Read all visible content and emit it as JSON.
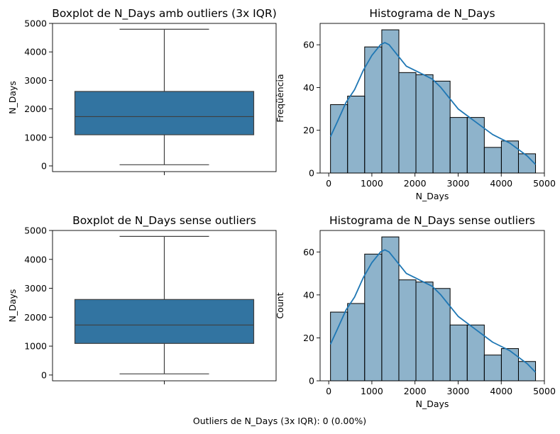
{
  "footer": "Outliers de N_Days (3x IQR): 0 (0.00%)",
  "chart_data": [
    {
      "type": "box",
      "title": "Boxplot de N_Days amb outliers (3x IQR)",
      "xlabel": "",
      "ylabel": "N_Days",
      "ylim": [
        -200,
        5000
      ],
      "yticks": [
        0,
        1000,
        2000,
        3000,
        4000,
        5000
      ],
      "whisker_low": 41,
      "q1": 1093,
      "median": 1730,
      "q3": 2613,
      "whisker_high": 4795,
      "color": "#3274a1",
      "grid": false
    },
    {
      "type": "bar",
      "title": "Histograma de N_Days",
      "xlabel": "N_Days",
      "ylabel": "Freqüència",
      "xlim": [
        -200,
        5000
      ],
      "ylim": [
        0,
        70
      ],
      "xticks": [
        0,
        1000,
        2000,
        3000,
        4000,
        5000
      ],
      "yticks": [
        0,
        20,
        40,
        60
      ],
      "bin_edges": [
        41,
        437,
        833,
        1230,
        1626,
        2022,
        2418,
        2814,
        3211,
        3607,
        4003,
        4399,
        4795
      ],
      "values": [
        32,
        36,
        59,
        67,
        47,
        46,
        43,
        26,
        26,
        12,
        15,
        9
      ],
      "kde": {
        "x": [
          41,
          200,
          400,
          600,
          800,
          1000,
          1200,
          1300,
          1400,
          1600,
          1800,
          2000,
          2200,
          2400,
          2600,
          2800,
          3000,
          3200,
          3400,
          3600,
          3800,
          4000,
          4200,
          4400,
          4600,
          4795
        ],
        "y": [
          17,
          24,
          33,
          39,
          48,
          55,
          60,
          61,
          60,
          55,
          50,
          48,
          46,
          44,
          40,
          35,
          30,
          27,
          24,
          21,
          18,
          16,
          14,
          11,
          8,
          4
        ]
      },
      "color": "#3274a1",
      "grid": false
    },
    {
      "type": "box",
      "title": "Boxplot de N_Days sense outliers",
      "xlabel": "",
      "ylabel": "N_Days",
      "ylim": [
        -200,
        5000
      ],
      "yticks": [
        0,
        1000,
        2000,
        3000,
        4000,
        5000
      ],
      "whisker_low": 41,
      "q1": 1093,
      "median": 1730,
      "q3": 2613,
      "whisker_high": 4795,
      "color": "#3274a1",
      "grid": false
    },
    {
      "type": "bar",
      "title": "Histograma de N_Days sense outliers",
      "xlabel": "N_Days",
      "ylabel": "Count",
      "xlim": [
        -200,
        5000
      ],
      "ylim": [
        0,
        70
      ],
      "xticks": [
        0,
        1000,
        2000,
        3000,
        4000,
        5000
      ],
      "yticks": [
        0,
        20,
        40,
        60
      ],
      "bin_edges": [
        41,
        437,
        833,
        1230,
        1626,
        2022,
        2418,
        2814,
        3211,
        3607,
        4003,
        4399,
        4795
      ],
      "values": [
        32,
        36,
        59,
        67,
        47,
        46,
        43,
        26,
        26,
        12,
        15,
        9
      ],
      "kde": {
        "x": [
          41,
          200,
          400,
          600,
          800,
          1000,
          1200,
          1300,
          1400,
          1600,
          1800,
          2000,
          2200,
          2400,
          2600,
          2800,
          3000,
          3200,
          3400,
          3600,
          3800,
          4000,
          4200,
          4400,
          4600,
          4795
        ],
        "y": [
          17,
          24,
          33,
          39,
          48,
          55,
          60,
          61,
          60,
          55,
          50,
          48,
          46,
          44,
          40,
          35,
          30,
          27,
          24,
          21,
          18,
          16,
          14,
          11,
          8,
          4
        ]
      },
      "color": "#3274a1",
      "grid": false
    }
  ]
}
